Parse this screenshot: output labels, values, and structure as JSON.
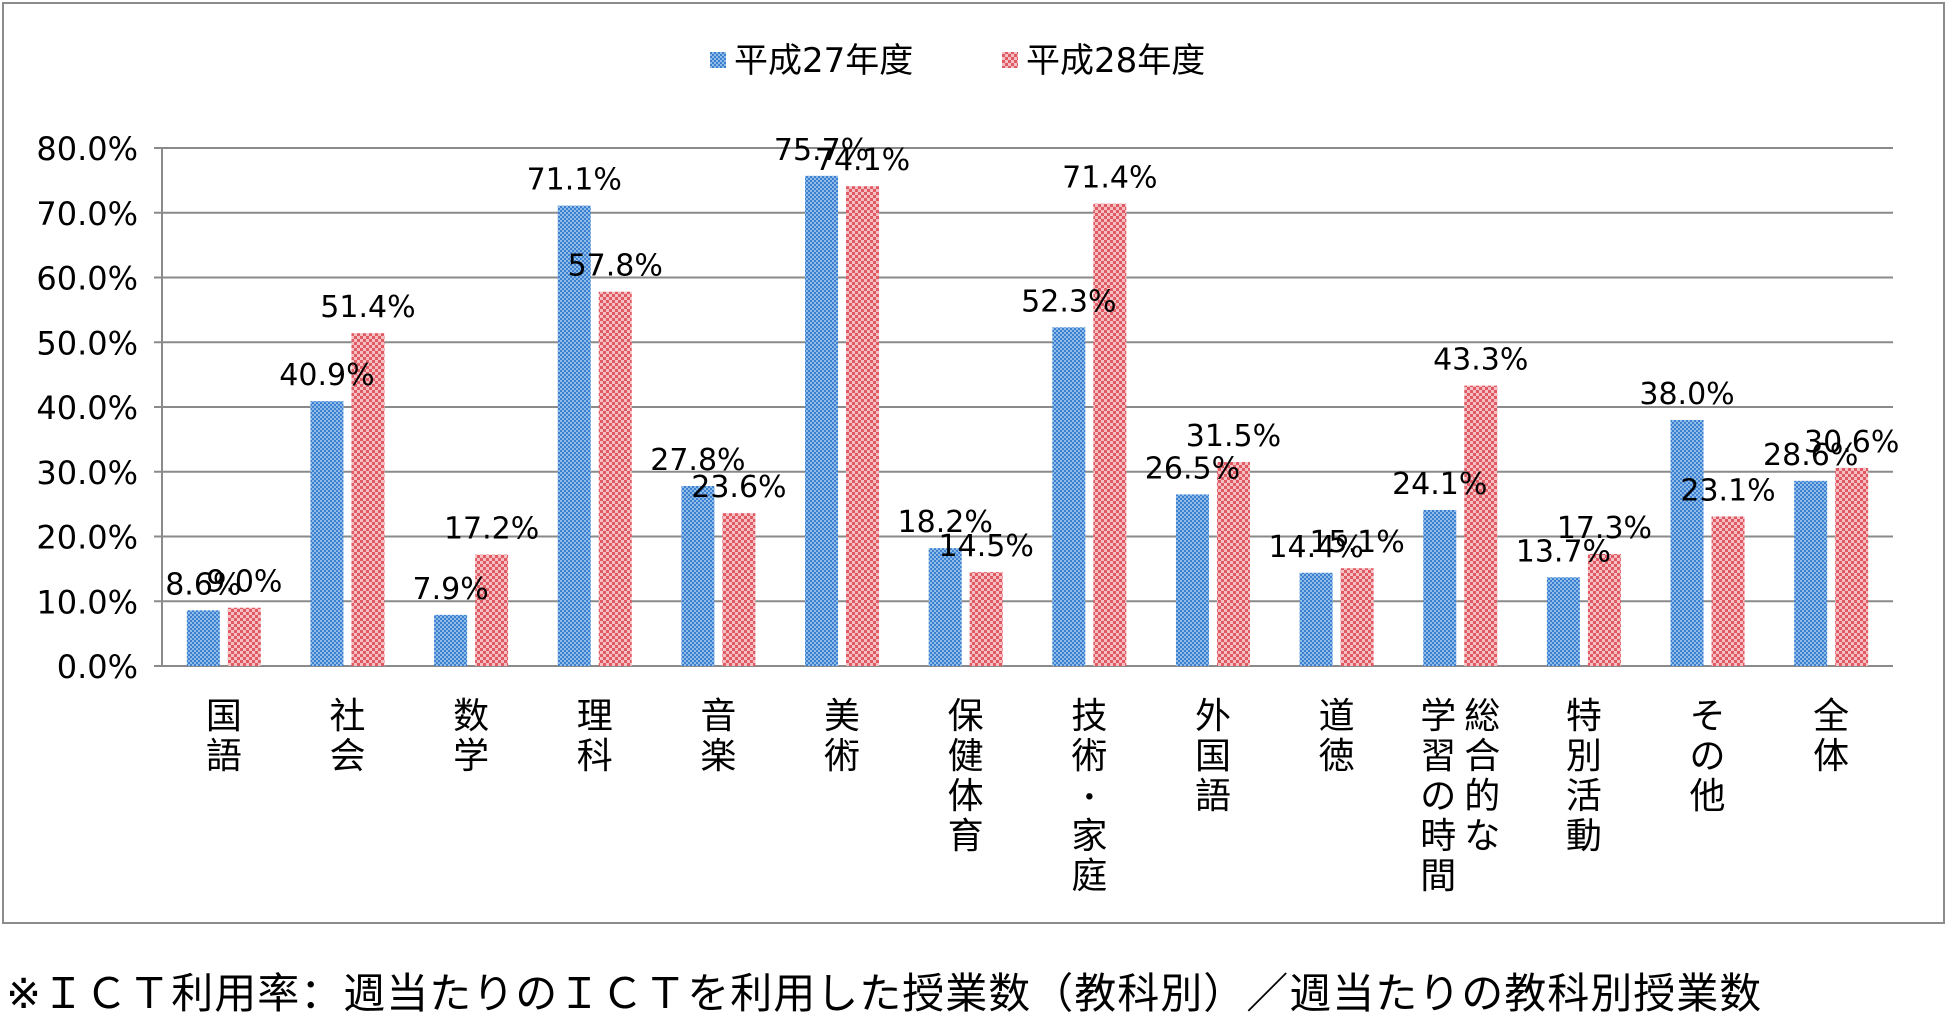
{
  "chart_data": {
    "type": "bar",
    "title": "",
    "xlabel": "",
    "ylabel": "",
    "ylim": [
      0,
      80
    ],
    "yticks": [
      "0.0%",
      "10.0%",
      "20.0%",
      "30.0%",
      "40.0%",
      "50.0%",
      "60.0%",
      "70.0%",
      "80.0%"
    ],
    "grid": true,
    "legend_position": "top",
    "categories": [
      "国語",
      "社会",
      "数学",
      "理科",
      "音楽",
      "美術",
      "保健体育",
      "技術・家庭",
      "外国語",
      "道徳",
      "総合的な学習の時間",
      "特別活動",
      "その他",
      "全体"
    ],
    "category_label_columns": [
      [
        "国語"
      ],
      [
        "社会"
      ],
      [
        "数学"
      ],
      [
        "理科"
      ],
      [
        "音楽"
      ],
      [
        "美術"
      ],
      [
        "保健体育"
      ],
      [
        "技術・家庭"
      ],
      [
        "外国語"
      ],
      [
        "道徳"
      ],
      [
        "総合的な",
        "学習の時間"
      ],
      [
        "特別活動"
      ],
      [
        "その他"
      ],
      [
        "全体"
      ]
    ],
    "series": [
      {
        "name": "平成27年度",
        "color": "#4a8fd6",
        "values": [
          8.6,
          40.9,
          7.9,
          71.1,
          27.8,
          75.7,
          18.2,
          52.3,
          26.5,
          14.4,
          24.1,
          13.7,
          38.0,
          28.6
        ],
        "labels": [
          "8.6%",
          "40.9%",
          "7.9%",
          "71.1%",
          "27.8%",
          "75.7%",
          "18.2%",
          "52.3%",
          "26.5%",
          "14.4%",
          "24.1%",
          "13.7%",
          "38.0%",
          "28.6%"
        ]
      },
      {
        "name": "平成28年度",
        "color": "#e8868c",
        "values": [
          9.0,
          51.4,
          17.2,
          57.8,
          23.6,
          74.1,
          14.5,
          71.4,
          31.5,
          15.1,
          43.3,
          17.3,
          23.1,
          30.6
        ],
        "labels": [
          "9.0%",
          "51.4%",
          "17.2%",
          "57.8%",
          "23.6%",
          "74.1%",
          "14.5%",
          "71.4%",
          "31.5%",
          "15.1%",
          "43.3%",
          "17.3%",
          "23.1%",
          "30.6%"
        ]
      }
    ]
  },
  "footnote": "※ＩＣＴ利用率：週当たりのＩＣＴを利用した授業数（教科別）／週当たりの教科別授業数"
}
